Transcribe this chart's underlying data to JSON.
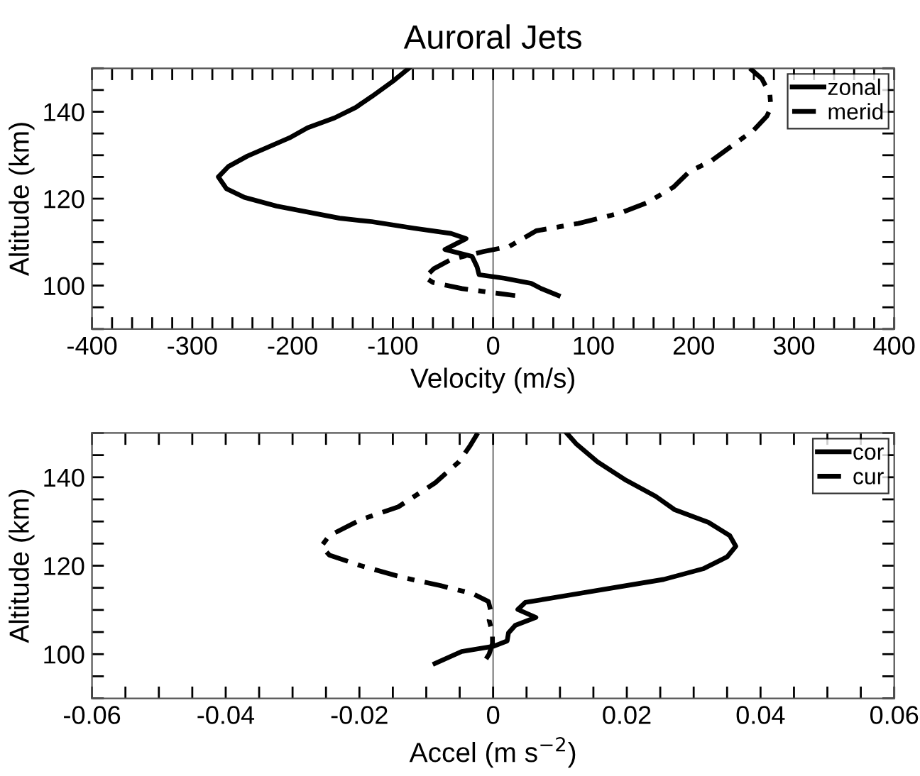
{
  "chart_data": [
    {
      "type": "line",
      "title": "Auroral Jets",
      "xlabel": "Velocity (m/s)",
      "ylabel": "Altitude (km)",
      "legend": "top right",
      "grid": false,
      "xlim": [
        -400,
        400
      ],
      "ylim": [
        90,
        150
      ],
      "xticks": [
        -400,
        {
          "value": -380,
          "label": null
        },
        {
          "value": -360,
          "label": null
        },
        {
          "value": -340,
          "label": null
        },
        {
          "value": -320,
          "label": null
        },
        -300,
        {
          "value": -280,
          "label": null
        },
        {
          "value": -260,
          "label": null
        },
        {
          "value": -240,
          "label": null
        },
        {
          "value": -220,
          "label": null
        },
        -200,
        {
          "value": -180,
          "label": null
        },
        {
          "value": -160,
          "label": null
        },
        {
          "value": -140,
          "label": null
        },
        {
          "value": -120,
          "label": null
        },
        -100,
        {
          "value": -80,
          "label": null
        },
        {
          "value": -60,
          "label": null
        },
        {
          "value": -40,
          "label": null
        },
        {
          "value": -20,
          "label": null
        },
        0,
        {
          "value": 20,
          "label": null
        },
        {
          "value": 40,
          "label": null
        },
        {
          "value": 60,
          "label": null
        },
        {
          "value": 80,
          "label": null
        },
        100,
        {
          "value": 120,
          "label": null
        },
        {
          "value": 140,
          "label": null
        },
        {
          "value": 160,
          "label": null
        },
        {
          "value": 180,
          "label": null
        },
        200,
        {
          "value": 220,
          "label": null
        },
        {
          "value": 240,
          "label": null
        },
        {
          "value": 260,
          "label": null
        },
        {
          "value": 280,
          "label": null
        },
        300,
        {
          "value": 320,
          "label": null
        },
        {
          "value": 340,
          "label": null
        },
        {
          "value": 360,
          "label": null
        },
        {
          "value": 380,
          "label": null
        },
        400
      ],
      "yticks": [
        {
          "value": 90,
          "label": null
        },
        {
          "value": 95,
          "label": null
        },
        100,
        {
          "value": 105,
          "label": null
        },
        {
          "value": 110,
          "label": null
        },
        {
          "value": 115,
          "label": null
        },
        120,
        {
          "value": 125,
          "label": null
        },
        {
          "value": 130,
          "label": null
        },
        {
          "value": 135,
          "label": null
        },
        140,
        {
          "value": 145,
          "label": null
        },
        {
          "value": 150,
          "label": null
        }
      ],
      "ref_lines": [
        {
          "axis": "x",
          "value": 0,
          "color": "#808080"
        }
      ],
      "series": [
        {
          "name": "zonal",
          "color": "#000000",
          "line_style": "solid",
          "x": [
            -84,
            -100,
            -121,
            -137,
            -158,
            -185,
            -203,
            -227,
            -245,
            -264,
            -274,
            -266,
            -248,
            -216,
            -153,
            -121,
            -79,
            -42,
            -27,
            -48,
            -21,
            -16,
            -14,
            11,
            38,
            48,
            65
          ],
          "values": [
            150,
            147,
            143.5,
            141,
            138.6,
            136.3,
            134,
            131.6,
            129.8,
            127.4,
            125,
            122.3,
            120.3,
            118.3,
            115.5,
            114.7,
            113.2,
            112,
            110.8,
            108.3,
            106.7,
            104.3,
            102.5,
            101.7,
            100.5,
            99.3,
            97.7
          ]
        },
        {
          "name": "merid",
          "color": "#000000",
          "line_style": "dashdot",
          "x": [
            256,
            268,
            276,
            277,
            273,
            260,
            239,
            217,
            196,
            180,
            154,
            127,
            85,
            43,
            16,
            -10,
            -42,
            -59,
            -68,
            -60,
            -31,
            22
          ],
          "values": [
            150,
            147.6,
            144,
            141,
            139,
            135.8,
            132.3,
            128.6,
            126.3,
            122.7,
            119.1,
            116.7,
            114.3,
            112.6,
            109,
            107.8,
            106,
            103.9,
            101.9,
            100.7,
            99.3,
            97.7
          ]
        }
      ]
    },
    {
      "type": "line",
      "xlabel": "Accel (m s$^{−2}$)",
      "ylabel": "Altitude (km)",
      "legend": "top right",
      "grid": false,
      "xlim": [
        -0.06,
        0.06
      ],
      "ylim": [
        90,
        150
      ],
      "xticks": [
        -0.06,
        {
          "value": -0.055,
          "label": null
        },
        {
          "value": -0.05,
          "label": null
        },
        {
          "value": -0.045,
          "label": null
        },
        -0.04,
        {
          "value": -0.035,
          "label": null
        },
        {
          "value": -0.03,
          "label": null
        },
        {
          "value": -0.025,
          "label": null
        },
        -0.02,
        {
          "value": -0.015,
          "label": null
        },
        {
          "value": -0.01,
          "label": null
        },
        {
          "value": -0.005,
          "label": null
        },
        0,
        {
          "value": 0.005,
          "label": null
        },
        {
          "value": 0.01,
          "label": null
        },
        {
          "value": 0.015,
          "label": null
        },
        0.02,
        {
          "value": 0.025,
          "label": null
        },
        {
          "value": 0.03,
          "label": null
        },
        {
          "value": 0.035,
          "label": null
        },
        0.04,
        {
          "value": 0.045,
          "label": null
        },
        {
          "value": 0.05,
          "label": null
        },
        {
          "value": 0.055,
          "label": null
        },
        0.06
      ],
      "yticks": [
        {
          "value": 90,
          "label": null
        },
        {
          "value": 95,
          "label": null
        },
        100,
        {
          "value": 105,
          "label": null
        },
        {
          "value": 110,
          "label": null
        },
        {
          "value": 115,
          "label": null
        },
        120,
        {
          "value": 125,
          "label": null
        },
        {
          "value": 130,
          "label": null
        },
        {
          "value": 135,
          "label": null
        },
        140,
        {
          "value": 145,
          "label": null
        },
        {
          "value": 150,
          "label": null
        }
      ],
      "ref_lines": [
        {
          "axis": "x",
          "value": 0,
          "color": "#808080"
        }
      ],
      "series": [
        {
          "name": "cor",
          "color": "#000000",
          "line_style": "solid",
          "x": [
            0.011,
            0.0124,
            0.0156,
            0.0199,
            0.0243,
            0.0271,
            0.0322,
            0.0354,
            0.0363,
            0.035,
            0.0314,
            0.0255,
            0.0199,
            0.0136,
            0.0048,
            0.0037,
            0.0064,
            0.0033,
            0.0023,
            0.0021,
            0.0001,
            -0.0047,
            -0.0087
          ],
          "values": [
            150,
            147.6,
            143.5,
            139.3,
            135.7,
            132.7,
            129.8,
            126.8,
            124.4,
            122,
            119.3,
            116.9,
            115.5,
            113.9,
            111.7,
            110.1,
            108.3,
            106.5,
            104.8,
            103,
            101.8,
            100.6,
            97.9
          ]
        },
        {
          "name": "cur",
          "color": "#000000",
          "line_style": "dashdot",
          "x": [
            -0.0023,
            -0.0035,
            -0.0051,
            -0.0087,
            -0.0142,
            -0.0198,
            -0.0245,
            -0.0257,
            -0.0245,
            -0.0198,
            -0.0134,
            -0.0079,
            -0.0031,
            -0.0007,
            -0.0003,
            -0.0006,
            -0.0001,
            -0.0001,
            -0.0006,
            -0.0015
          ],
          "values": [
            150,
            147,
            143.5,
            138.7,
            133.3,
            130.4,
            126.8,
            124.4,
            122.4,
            120,
            117.3,
            115.5,
            113.7,
            111.9,
            109.5,
            107.7,
            104.8,
            102.4,
            100,
            97.9
          ]
        }
      ]
    }
  ]
}
